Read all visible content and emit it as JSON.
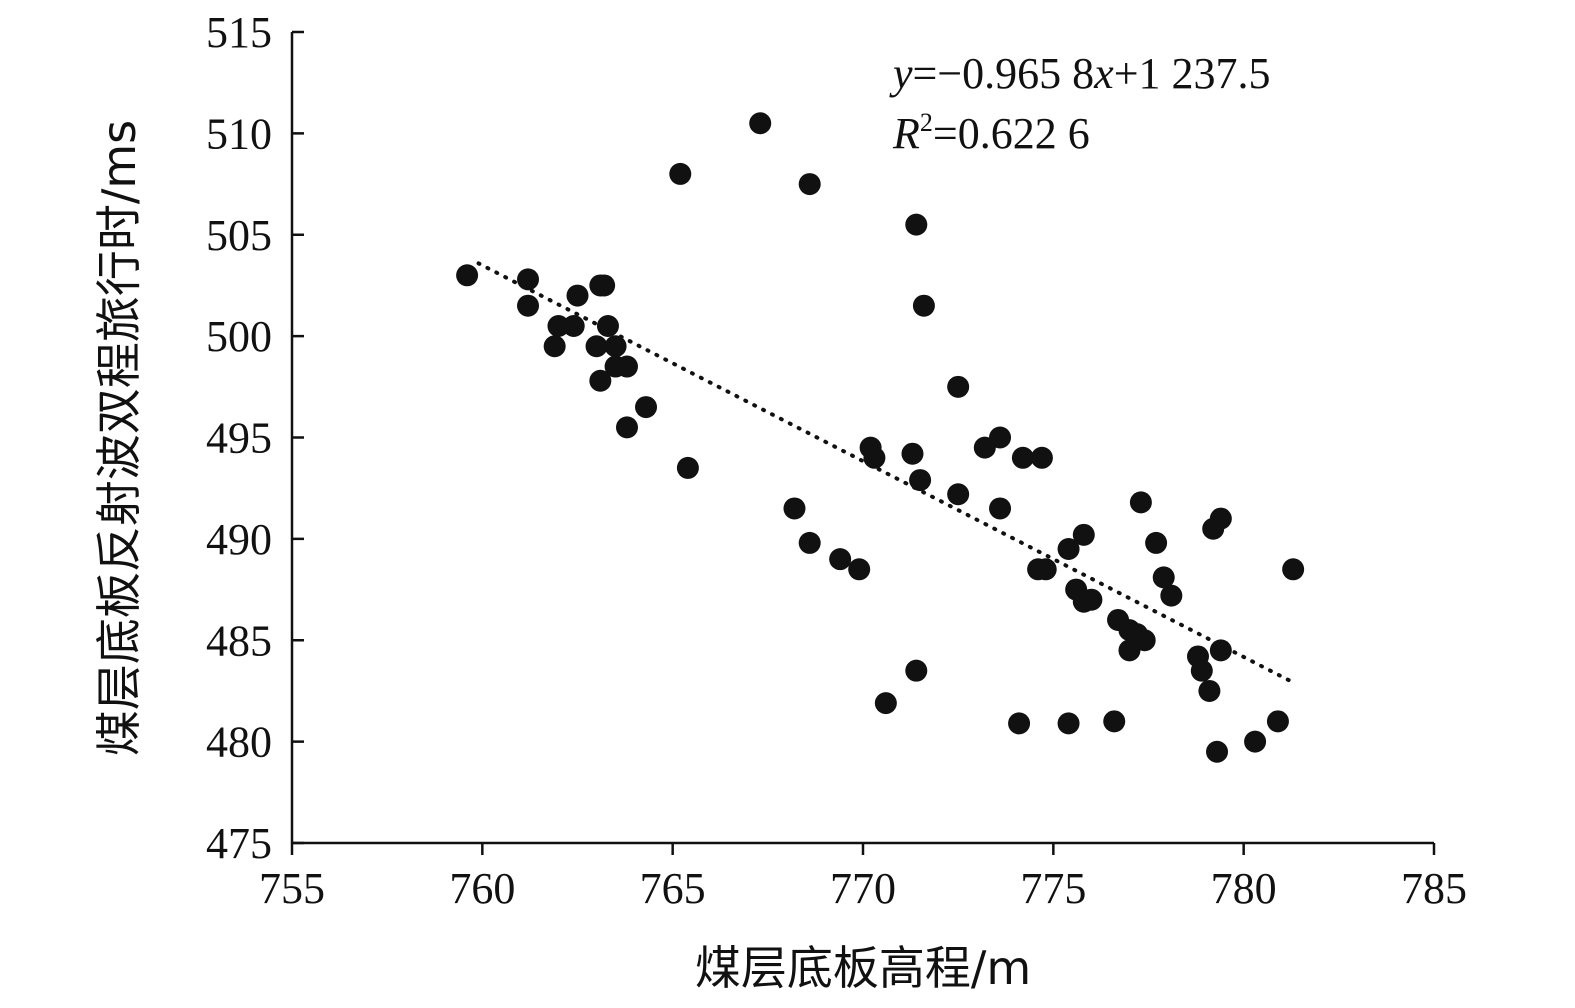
{
  "chart_data": {
    "type": "scatter",
    "xlabel": "煤层底板高程/m",
    "ylabel": "煤层底板反射波双程旅行时/ms",
    "xlim": [
      755,
      785
    ],
    "ylim": [
      475,
      515
    ],
    "x_ticks": [
      755,
      760,
      765,
      770,
      775,
      780,
      785
    ],
    "y_ticks": [
      475,
      480,
      485,
      490,
      495,
      500,
      505,
      510,
      515
    ],
    "grid": false,
    "equation": {
      "line1": {
        "y": "y",
        "rest": "=−0.965 8",
        "x": "x",
        "tail": "+1 237.5"
      },
      "line2": {
        "r": "R",
        "sup": "2",
        "rest": "=0.622 6"
      }
    },
    "trendline": {
      "slope": -0.9658,
      "intercept": 1237.5,
      "x_range": [
        759.9,
        781.3
      ],
      "style": "dotted"
    },
    "points": [
      [
        759.6,
        503.0
      ],
      [
        761.2,
        502.8
      ],
      [
        761.2,
        501.5
      ],
      [
        762.5,
        502.0
      ],
      [
        763.1,
        502.5
      ],
      [
        763.2,
        502.5
      ],
      [
        762.0,
        500.5
      ],
      [
        762.4,
        500.5
      ],
      [
        763.3,
        500.5
      ],
      [
        761.9,
        499.5
      ],
      [
        763.0,
        499.5
      ],
      [
        763.5,
        499.5
      ],
      [
        763.5,
        498.5
      ],
      [
        763.8,
        498.5
      ],
      [
        763.1,
        497.8
      ],
      [
        764.3,
        496.5
      ],
      [
        763.8,
        495.5
      ],
      [
        765.4,
        493.5
      ],
      [
        765.2,
        508.0
      ],
      [
        767.3,
        510.5
      ],
      [
        768.6,
        507.5
      ],
      [
        771.4,
        505.5
      ],
      [
        771.6,
        501.5
      ],
      [
        772.5,
        497.5
      ],
      [
        770.2,
        494.5
      ],
      [
        770.3,
        494.0
      ],
      [
        771.3,
        494.2
      ],
      [
        771.5,
        492.9
      ],
      [
        772.5,
        492.2
      ],
      [
        773.2,
        494.5
      ],
      [
        773.6,
        495.0
      ],
      [
        774.2,
        494.0
      ],
      [
        774.7,
        494.0
      ],
      [
        773.6,
        491.5
      ],
      [
        768.2,
        491.5
      ],
      [
        768.6,
        489.8
      ],
      [
        769.4,
        489.0
      ],
      [
        769.9,
        488.5
      ],
      [
        771.4,
        483.5
      ],
      [
        770.6,
        481.9
      ],
      [
        774.1,
        480.9
      ],
      [
        775.4,
        480.9
      ],
      [
        776.6,
        481.0
      ],
      [
        775.4,
        489.5
      ],
      [
        775.8,
        490.2
      ],
      [
        774.6,
        488.5
      ],
      [
        774.8,
        488.5
      ],
      [
        775.6,
        487.5
      ],
      [
        775.8,
        486.9
      ],
      [
        776.0,
        487.0
      ],
      [
        776.7,
        486.0
      ],
      [
        777.0,
        485.5
      ],
      [
        777.2,
        485.3
      ],
      [
        777.4,
        485.0
      ],
      [
        777.0,
        484.5
      ],
      [
        777.3,
        491.8
      ],
      [
        777.7,
        489.8
      ],
      [
        777.9,
        488.1
      ],
      [
        778.1,
        487.2
      ],
      [
        778.8,
        484.2
      ],
      [
        778.9,
        483.5
      ],
      [
        779.1,
        482.5
      ],
      [
        779.4,
        484.5
      ],
      [
        779.2,
        490.5
      ],
      [
        779.4,
        491.0
      ],
      [
        779.3,
        479.5
      ],
      [
        780.3,
        480.0
      ],
      [
        780.9,
        481.0
      ],
      [
        781.3,
        488.5
      ]
    ]
  }
}
